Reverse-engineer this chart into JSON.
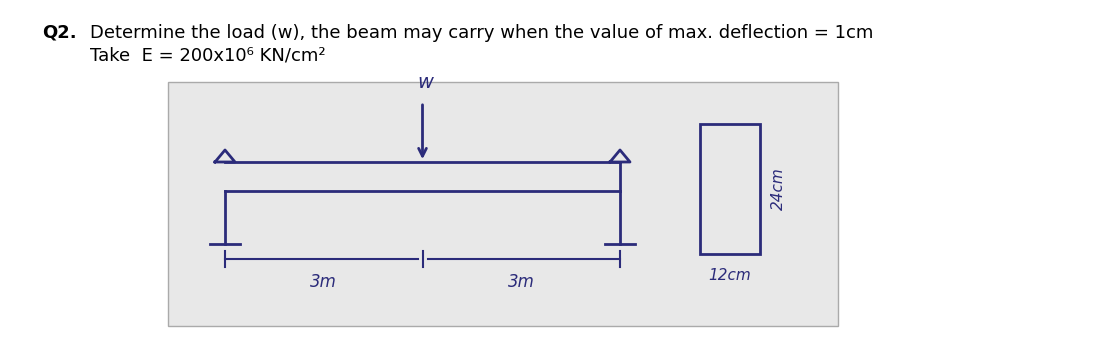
{
  "title_q": "Q2.",
  "title_text": "Determine the load (w), the beam may carry when the value of max. deflection = 1cm",
  "subtitle_text": "Take  E = 200x10⁶ KN/cm²",
  "bg_color": "#ffffff",
  "diagram_bg": "#e8e8e8",
  "ink_color": "#2b2b7a",
  "label_3m_left": "3m",
  "label_3m_right": "3m",
  "label_12cm": "12cm",
  "label_24cm": "24cm",
  "label_w": "w"
}
